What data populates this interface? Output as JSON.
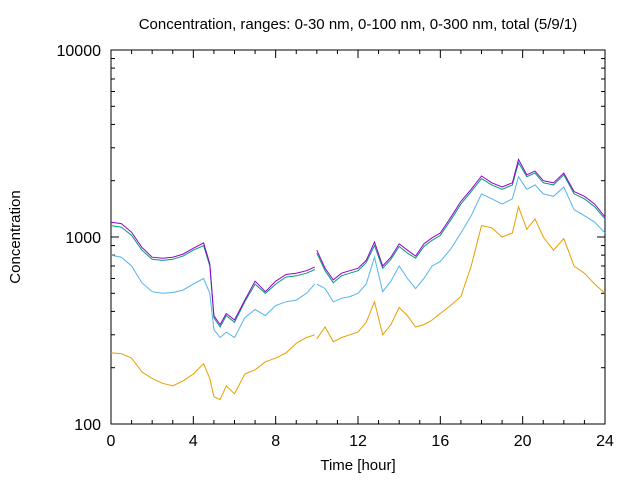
{
  "chart_data": {
    "type": "line",
    "title": "Concentration, ranges: 0-30 nm, 0-100 nm, 0-300 nm, total (5/9/1)",
    "xlabel": "Time [hour]",
    "ylabel": "Concentration",
    "xlim": [
      0,
      24
    ],
    "ylim": [
      100,
      10000
    ],
    "yscale": "log",
    "grid": false,
    "legend": "none",
    "x_ticks": [
      "0",
      "4",
      "8",
      "12",
      "16",
      "20",
      "24"
    ],
    "y_ticks": [
      "100",
      "1000",
      "10000"
    ],
    "series": [
      {
        "color": "#e69f00",
        "points": [
          [
            0,
            240
          ],
          [
            0.5,
            238
          ],
          [
            1,
            225
          ],
          [
            1.5,
            190
          ],
          [
            2,
            175
          ],
          [
            2.5,
            165
          ],
          [
            3,
            160
          ],
          [
            3.5,
            170
          ],
          [
            4,
            185
          ],
          [
            4.5,
            210
          ],
          [
            4.8,
            175
          ],
          [
            5,
            140
          ],
          [
            5.3,
            135
          ],
          [
            5.6,
            160
          ],
          [
            6,
            145
          ],
          [
            6.5,
            185
          ],
          [
            7,
            195
          ],
          [
            7.5,
            215
          ],
          [
            8,
            225
          ],
          [
            8.5,
            240
          ],
          [
            9,
            270
          ],
          [
            9.5,
            290
          ],
          [
            9.9,
            300
          ],
          [
            10,
            285
          ],
          [
            10.4,
            330
          ],
          [
            10.8,
            275
          ],
          [
            11.2,
            290
          ],
          [
            11.6,
            300
          ],
          [
            12,
            310
          ],
          [
            12.4,
            350
          ],
          [
            12.8,
            450
          ],
          [
            13.2,
            300
          ],
          [
            13.6,
            340
          ],
          [
            14,
            420
          ],
          [
            14.4,
            380
          ],
          [
            14.8,
            330
          ],
          [
            15.2,
            340
          ],
          [
            15.6,
            360
          ],
          [
            16,
            390
          ],
          [
            16.5,
            430
          ],
          [
            17,
            480
          ],
          [
            17.5,
            700
          ],
          [
            18,
            1150
          ],
          [
            18.5,
            1120
          ],
          [
            19,
            1000
          ],
          [
            19.5,
            1050
          ],
          [
            19.8,
            1450
          ],
          [
            20.2,
            1100
          ],
          [
            20.6,
            1250
          ],
          [
            21,
            1000
          ],
          [
            21.5,
            850
          ],
          [
            22,
            980
          ],
          [
            22.5,
            700
          ],
          [
            23,
            640
          ],
          [
            23.5,
            560
          ],
          [
            24,
            500
          ]
        ]
      },
      {
        "color": "#56b4e9",
        "points": [
          [
            0,
            800
          ],
          [
            0.5,
            780
          ],
          [
            1,
            700
          ],
          [
            1.5,
            570
          ],
          [
            2,
            510
          ],
          [
            2.5,
            500
          ],
          [
            3,
            505
          ],
          [
            3.5,
            520
          ],
          [
            4,
            560
          ],
          [
            4.5,
            600
          ],
          [
            4.8,
            500
          ],
          [
            5,
            320
          ],
          [
            5.3,
            290
          ],
          [
            5.6,
            310
          ],
          [
            6,
            290
          ],
          [
            6.5,
            370
          ],
          [
            7,
            410
          ],
          [
            7.5,
            380
          ],
          [
            8,
            430
          ],
          [
            8.5,
            450
          ],
          [
            9,
            460
          ],
          [
            9.5,
            500
          ],
          [
            9.9,
            560
          ],
          [
            10,
            560
          ],
          [
            10.4,
            530
          ],
          [
            10.8,
            450
          ],
          [
            11.2,
            470
          ],
          [
            11.6,
            480
          ],
          [
            12,
            500
          ],
          [
            12.4,
            560
          ],
          [
            12.8,
            780
          ],
          [
            13.2,
            510
          ],
          [
            13.6,
            580
          ],
          [
            14,
            700
          ],
          [
            14.4,
            600
          ],
          [
            14.8,
            530
          ],
          [
            15.2,
            600
          ],
          [
            15.6,
            700
          ],
          [
            16,
            740
          ],
          [
            16.5,
            860
          ],
          [
            17,
            1050
          ],
          [
            17.5,
            1300
          ],
          [
            18,
            1700
          ],
          [
            18.5,
            1600
          ],
          [
            19,
            1500
          ],
          [
            19.5,
            1600
          ],
          [
            19.8,
            2100
          ],
          [
            20.2,
            1800
          ],
          [
            20.6,
            1900
          ],
          [
            21,
            1700
          ],
          [
            21.5,
            1650
          ],
          [
            22,
            1850
          ],
          [
            22.5,
            1400
          ],
          [
            23,
            1300
          ],
          [
            23.5,
            1200
          ],
          [
            24,
            1050
          ]
        ]
      },
      {
        "color": "#009e73",
        "points": [
          [
            0,
            1150
          ],
          [
            0.5,
            1130
          ],
          [
            1,
            1020
          ],
          [
            1.5,
            850
          ],
          [
            2,
            760
          ],
          [
            2.5,
            750
          ],
          [
            3,
            760
          ],
          [
            3.5,
            790
          ],
          [
            4,
            850
          ],
          [
            4.5,
            900
          ],
          [
            4.8,
            700
          ],
          [
            5,
            370
          ],
          [
            5.3,
            330
          ],
          [
            5.6,
            380
          ],
          [
            6,
            350
          ],
          [
            6.5,
            450
          ],
          [
            7,
            560
          ],
          [
            7.5,
            500
          ],
          [
            8,
            560
          ],
          [
            8.5,
            610
          ],
          [
            9,
            620
          ],
          [
            9.5,
            640
          ],
          [
            9.9,
            670
          ],
          [
            10,
            820
          ],
          [
            10.4,
            660
          ],
          [
            10.8,
            570
          ],
          [
            11.2,
            620
          ],
          [
            11.6,
            640
          ],
          [
            12,
            660
          ],
          [
            12.4,
            730
          ],
          [
            12.8,
            900
          ],
          [
            13.2,
            680
          ],
          [
            13.6,
            760
          ],
          [
            14,
            890
          ],
          [
            14.4,
            820
          ],
          [
            14.8,
            770
          ],
          [
            15.2,
            890
          ],
          [
            15.6,
            960
          ],
          [
            16,
            1020
          ],
          [
            16.5,
            1230
          ],
          [
            17,
            1500
          ],
          [
            17.5,
            1750
          ],
          [
            18,
            2050
          ],
          [
            18.5,
            1900
          ],
          [
            19,
            1800
          ],
          [
            19.5,
            1900
          ],
          [
            19.8,
            2500
          ],
          [
            20.2,
            2100
          ],
          [
            20.6,
            2200
          ],
          [
            21,
            1950
          ],
          [
            21.5,
            1900
          ],
          [
            22,
            2150
          ],
          [
            22.5,
            1700
          ],
          [
            23,
            1600
          ],
          [
            23.5,
            1450
          ],
          [
            24,
            1250
          ]
        ]
      },
      {
        "color": "#9400d3",
        "points": [
          [
            0,
            1200
          ],
          [
            0.5,
            1180
          ],
          [
            1,
            1060
          ],
          [
            1.5,
            880
          ],
          [
            2,
            780
          ],
          [
            2.5,
            770
          ],
          [
            3,
            780
          ],
          [
            3.5,
            810
          ],
          [
            4,
            870
          ],
          [
            4.5,
            930
          ],
          [
            4.8,
            720
          ],
          [
            5,
            380
          ],
          [
            5.3,
            340
          ],
          [
            5.6,
            390
          ],
          [
            6,
            360
          ],
          [
            6.5,
            460
          ],
          [
            7,
            580
          ],
          [
            7.5,
            510
          ],
          [
            8,
            580
          ],
          [
            8.5,
            630
          ],
          [
            9,
            640
          ],
          [
            9.5,
            660
          ],
          [
            9.9,
            690
          ],
          [
            10,
            850
          ],
          [
            10.4,
            680
          ],
          [
            10.8,
            590
          ],
          [
            11.2,
            640
          ],
          [
            11.6,
            660
          ],
          [
            12,
            680
          ],
          [
            12.4,
            750
          ],
          [
            12.8,
            940
          ],
          [
            13.2,
            700
          ],
          [
            13.6,
            780
          ],
          [
            14,
            920
          ],
          [
            14.4,
            850
          ],
          [
            14.8,
            790
          ],
          [
            15.2,
            920
          ],
          [
            15.6,
            990
          ],
          [
            16,
            1050
          ],
          [
            16.5,
            1270
          ],
          [
            17,
            1550
          ],
          [
            17.5,
            1800
          ],
          [
            18,
            2120
          ],
          [
            18.5,
            1950
          ],
          [
            19,
            1850
          ],
          [
            19.5,
            1950
          ],
          [
            19.8,
            2600
          ],
          [
            20.2,
            2150
          ],
          [
            20.6,
            2250
          ],
          [
            21,
            2000
          ],
          [
            21.5,
            1950
          ],
          [
            22,
            2200
          ],
          [
            22.5,
            1750
          ],
          [
            23,
            1650
          ],
          [
            23.5,
            1500
          ],
          [
            24,
            1280
          ]
        ]
      }
    ]
  }
}
